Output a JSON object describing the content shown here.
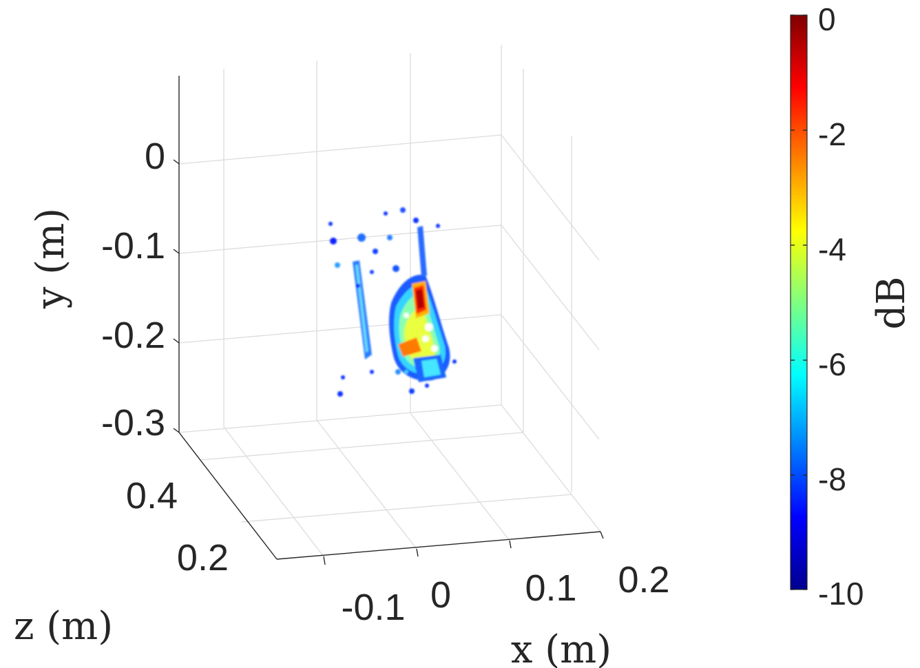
{
  "chart_data": {
    "type": "scatter",
    "subtype": "3d-volumetric-image",
    "x_label": "x (m)",
    "y_label": "y (m)",
    "z_label": "z (m)",
    "x_ticks": [
      "-0.1",
      "0",
      "0.1",
      "0.2"
    ],
    "y_ticks": [
      "0",
      "-0.1",
      "-0.2",
      "-0.3"
    ],
    "z_ticks": [
      "0.4",
      "0.2"
    ],
    "colorbar": {
      "label": "dB",
      "ticks": [
        "0",
        "-2",
        "-4",
        "-6",
        "-8",
        "-10"
      ],
      "range": [
        -10,
        0
      ],
      "colormap": "jet"
    },
    "grid": true
  }
}
